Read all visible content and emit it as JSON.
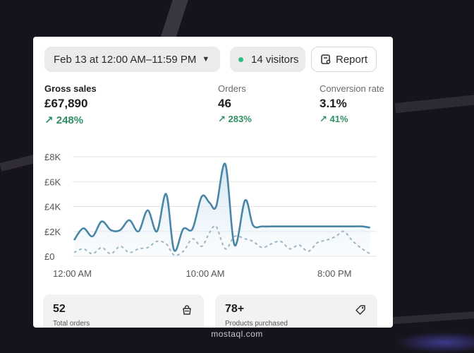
{
  "toolbar": {
    "date_range": "Feb 13 at 12:00 AM–11:59 PM",
    "visitors": "14 visitors",
    "report_label": "Report"
  },
  "metrics": [
    {
      "label": "Gross sales",
      "value": "£67,890",
      "change": "248%"
    },
    {
      "label": "Orders",
      "value": "46",
      "change": "283%"
    },
    {
      "label": "Conversion rate",
      "value": "3.1%",
      "change": "41%"
    }
  ],
  "colors": {
    "accent_line": "#4a86a6",
    "compare_line": "#9cb6c4",
    "positive": "#2e8f63",
    "live_dot": "#2fbf85"
  },
  "chart_data": {
    "type": "line",
    "y_tick_labels": [
      "£8K",
      "£6K",
      "£4K",
      "£2K",
      "£0"
    ],
    "y_ticks": [
      8000,
      6000,
      4000,
      2000,
      0
    ],
    "ylim": [
      0,
      8000
    ],
    "x_tick_labels": [
      "12:00 AM",
      "10:00 AM",
      "8:00 PM"
    ],
    "x_tick_hours": [
      0,
      10,
      20
    ],
    "xlim": [
      0,
      23
    ],
    "grid": true,
    "series": [
      {
        "style": "solid",
        "x": [
          0,
          0.7,
          1.4,
          2.1,
          2.8,
          3.5,
          4.2,
          4.9,
          5.6,
          6.3,
          7.0,
          7.6,
          8.3,
          9.0,
          9.7,
          10.3,
          10.8,
          11.5,
          12.2,
          13.0,
          13.6,
          14.3,
          15.0,
          15.7,
          16.4,
          17.1,
          17.8,
          18.5,
          19.2,
          19.9,
          20.5,
          21.2,
          21.9,
          22.5
        ],
        "values": [
          1300,
          2250,
          1600,
          2800,
          2100,
          2100,
          2900,
          2000,
          3700,
          2000,
          5000,
          500,
          2200,
          2200,
          4800,
          4300,
          4000,
          7400,
          900,
          4500,
          2500,
          2400,
          2400,
          2400,
          2400,
          2400,
          2400,
          2400,
          2400,
          2400,
          2400,
          2400,
          2400,
          2300
        ]
      },
      {
        "style": "dashed",
        "x": [
          0,
          0.7,
          1.4,
          2.1,
          2.8,
          3.5,
          4.2,
          4.9,
          5.6,
          6.3,
          7.0,
          7.6,
          8.3,
          9.0,
          9.7,
          10.3,
          10.8,
          11.5,
          12.2,
          13.0,
          13.6,
          14.3,
          15.0,
          15.7,
          16.4,
          17.1,
          17.8,
          18.5,
          19.2,
          19.9,
          20.5,
          21.2,
          21.9,
          22.5
        ],
        "values": [
          300,
          600,
          200,
          700,
          200,
          800,
          300,
          600,
          700,
          1200,
          1000,
          100,
          400,
          1400,
          800,
          1900,
          2400,
          600,
          1600,
          1400,
          1200,
          700,
          1000,
          1200,
          600,
          900,
          400,
          1100,
          1300,
          1600,
          2000,
          1200,
          600,
          200
        ]
      }
    ]
  },
  "stats": [
    {
      "value": "52",
      "label": "Total orders",
      "icon": "shopping-bag-icon"
    },
    {
      "value": "78+",
      "label": "Products purchased",
      "icon": "tag-icon"
    }
  ],
  "watermark": "mostaql.com"
}
